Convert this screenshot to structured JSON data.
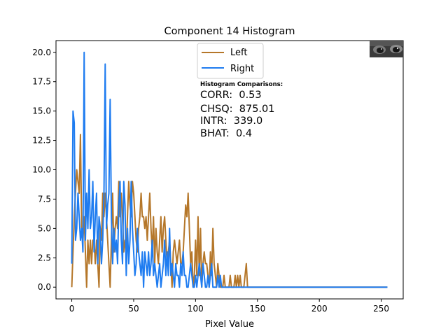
{
  "chart_data": {
    "type": "line",
    "title": "Component 14 Histogram",
    "xlabel": "Pixel Value",
    "ylabel": "",
    "xlim": [
      -12.75,
      267.75
    ],
    "ylim": [
      -1.0,
      21.0
    ],
    "xticks": [
      "0",
      "50",
      "100",
      "150",
      "200",
      "250"
    ],
    "yticks": [
      "0.0",
      "2.5",
      "5.0",
      "7.5",
      "10.0",
      "12.5",
      "15.0",
      "17.5",
      "20.0"
    ],
    "grid": false,
    "legend_position": "top-center",
    "series": [
      {
        "name": "Left",
        "color": "#b5772a",
        "points": [
          [
            0,
            0
          ],
          [
            2,
            6
          ],
          [
            4,
            10
          ],
          [
            5,
            9
          ],
          [
            6,
            8
          ],
          [
            7,
            13
          ],
          [
            8,
            5
          ],
          [
            9,
            4
          ],
          [
            10,
            6
          ],
          [
            11,
            3
          ],
          [
            12,
            0
          ],
          [
            13,
            4
          ],
          [
            14,
            2
          ],
          [
            15,
            4
          ],
          [
            16,
            2
          ],
          [
            17,
            4
          ],
          [
            18,
            4
          ],
          [
            19,
            2
          ],
          [
            20,
            4
          ],
          [
            21,
            2
          ],
          [
            22,
            0
          ],
          [
            23,
            5
          ],
          [
            24,
            4
          ],
          [
            25,
            8
          ],
          [
            26,
            6
          ],
          [
            27,
            8
          ],
          [
            28,
            6
          ],
          [
            29,
            4
          ],
          [
            30,
            2
          ],
          [
            31,
            0
          ],
          [
            32,
            4
          ],
          [
            33,
            8
          ],
          [
            34,
            3
          ],
          [
            35,
            5
          ],
          [
            36,
            6
          ],
          [
            37,
            5
          ],
          [
            38,
            9
          ],
          [
            39,
            6
          ],
          [
            40,
            8
          ],
          [
            41,
            6
          ],
          [
            42,
            3
          ],
          [
            43,
            4
          ],
          [
            44,
            3
          ],
          [
            45,
            6
          ],
          [
            46,
            9
          ],
          [
            47,
            7
          ],
          [
            48,
            6
          ],
          [
            49,
            9
          ],
          [
            50,
            8
          ],
          [
            51,
            6
          ],
          [
            52,
            4
          ],
          [
            53,
            3
          ],
          [
            54,
            5
          ],
          [
            55,
            6
          ],
          [
            56,
            8
          ],
          [
            57,
            6
          ],
          [
            58,
            6
          ],
          [
            59,
            5
          ],
          [
            60,
            6
          ],
          [
            61,
            4
          ],
          [
            62,
            6
          ],
          [
            63,
            8
          ],
          [
            64,
            5
          ],
          [
            65,
            3
          ],
          [
            66,
            6
          ],
          [
            67,
            2
          ],
          [
            68,
            5
          ],
          [
            69,
            3
          ],
          [
            70,
            2
          ],
          [
            71,
            4
          ],
          [
            72,
            6
          ],
          [
            73,
            3
          ],
          [
            74,
            5
          ],
          [
            75,
            6
          ],
          [
            76,
            4
          ],
          [
            77,
            2
          ],
          [
            78,
            3
          ],
          [
            79,
            4
          ],
          [
            80,
            2
          ],
          [
            81,
            0
          ],
          [
            82,
            3
          ],
          [
            83,
            4
          ],
          [
            84,
            3
          ],
          [
            85,
            2
          ],
          [
            86,
            3
          ],
          [
            87,
            4
          ],
          [
            88,
            2
          ],
          [
            89,
            2
          ],
          [
            90,
            3
          ],
          [
            91,
            5
          ],
          [
            92,
            7
          ],
          [
            93,
            6
          ],
          [
            94,
            8
          ],
          [
            95,
            5
          ],
          [
            96,
            2
          ],
          [
            97,
            3
          ],
          [
            98,
            0
          ],
          [
            99,
            1
          ],
          [
            100,
            4
          ],
          [
            101,
            1
          ],
          [
            102,
            6
          ],
          [
            103,
            1
          ],
          [
            104,
            5
          ],
          [
            105,
            0
          ],
          [
            106,
            2
          ],
          [
            107,
            3
          ],
          [
            108,
            2
          ],
          [
            109,
            2
          ],
          [
            110,
            1
          ],
          [
            111,
            0
          ],
          [
            112,
            3
          ],
          [
            113,
            1
          ],
          [
            114,
            5
          ],
          [
            115,
            2
          ],
          [
            116,
            1
          ],
          [
            117,
            0
          ],
          [
            118,
            2
          ],
          [
            119,
            1
          ],
          [
            120,
            0
          ],
          [
            121,
            0
          ],
          [
            122,
            0
          ],
          [
            123,
            1
          ],
          [
            124,
            0
          ],
          [
            125,
            0
          ],
          [
            126,
            0
          ],
          [
            127,
            0
          ],
          [
            128,
            1
          ],
          [
            129,
            0
          ],
          [
            130,
            0
          ],
          [
            131,
            0
          ],
          [
            132,
            1
          ],
          [
            133,
            0
          ],
          [
            134,
            1
          ],
          [
            135,
            0
          ],
          [
            136,
            1
          ],
          [
            137,
            0
          ],
          [
            138,
            0
          ],
          [
            139,
            0
          ],
          [
            140,
            1
          ],
          [
            141,
            2
          ],
          [
            142,
            0
          ],
          [
            143,
            0
          ],
          [
            150,
            0
          ],
          [
            200,
            0
          ],
          [
            255,
            0
          ]
        ]
      },
      {
        "name": "Right",
        "color": "#1f7cf0",
        "points": [
          [
            0,
            2
          ],
          [
            1,
            15
          ],
          [
            2,
            14
          ],
          [
            3,
            4
          ],
          [
            4,
            5
          ],
          [
            5,
            8
          ],
          [
            6,
            6
          ],
          [
            7,
            4
          ],
          [
            8,
            5
          ],
          [
            9,
            3
          ],
          [
            10,
            20
          ],
          [
            11,
            4
          ],
          [
            12,
            8
          ],
          [
            13,
            5
          ],
          [
            14,
            10
          ],
          [
            15,
            5
          ],
          [
            16,
            6
          ],
          [
            17,
            9
          ],
          [
            18,
            3
          ],
          [
            19,
            6
          ],
          [
            20,
            8
          ],
          [
            21,
            2
          ],
          [
            22,
            6
          ],
          [
            23,
            5
          ],
          [
            24,
            2
          ],
          [
            25,
            4
          ],
          [
            26,
            8
          ],
          [
            27,
            19
          ],
          [
            28,
            5
          ],
          [
            29,
            7
          ],
          [
            30,
            8
          ],
          [
            31,
            16
          ],
          [
            32,
            6
          ],
          [
            33,
            2
          ],
          [
            34,
            5
          ],
          [
            35,
            3
          ],
          [
            36,
            4
          ],
          [
            37,
            2
          ],
          [
            38,
            7
          ],
          [
            39,
            9
          ],
          [
            40,
            4
          ],
          [
            41,
            2
          ],
          [
            42,
            9
          ],
          [
            43,
            7
          ],
          [
            44,
            1
          ],
          [
            45,
            5
          ],
          [
            46,
            2
          ],
          [
            47,
            4
          ],
          [
            48,
            9
          ],
          [
            49,
            5
          ],
          [
            50,
            3
          ],
          [
            51,
            1
          ],
          [
            52,
            2
          ],
          [
            53,
            5
          ],
          [
            54,
            3
          ],
          [
            55,
            2
          ],
          [
            56,
            1
          ],
          [
            57,
            3
          ],
          [
            58,
            0
          ],
          [
            59,
            3
          ],
          [
            60,
            2
          ],
          [
            61,
            1
          ],
          [
            62,
            3
          ],
          [
            63,
            1
          ],
          [
            64,
            2
          ],
          [
            65,
            4
          ],
          [
            66,
            1
          ],
          [
            67,
            2
          ],
          [
            68,
            1
          ],
          [
            69,
            0
          ],
          [
            70,
            1
          ],
          [
            71,
            2
          ],
          [
            72,
            0
          ],
          [
            73,
            1
          ],
          [
            74,
            2
          ],
          [
            75,
            4
          ],
          [
            76,
            1
          ],
          [
            77,
            3
          ],
          [
            78,
            1
          ],
          [
            79,
            5
          ],
          [
            80,
            1
          ],
          [
            81,
            2
          ],
          [
            82,
            1
          ],
          [
            83,
            0
          ],
          [
            84,
            2
          ],
          [
            85,
            1
          ],
          [
            86,
            1
          ],
          [
            87,
            0
          ],
          [
            88,
            2
          ],
          [
            89,
            1
          ],
          [
            90,
            3
          ],
          [
            91,
            1
          ],
          [
            92,
            1
          ],
          [
            93,
            0
          ],
          [
            94,
            0
          ],
          [
            95,
            1
          ],
          [
            96,
            2
          ],
          [
            97,
            1
          ],
          [
            98,
            0
          ],
          [
            99,
            0
          ],
          [
            100,
            1
          ],
          [
            101,
            0
          ],
          [
            102,
            1
          ],
          [
            103,
            2
          ],
          [
            104,
            1
          ],
          [
            105,
            0
          ],
          [
            106,
            2
          ],
          [
            107,
            1
          ],
          [
            108,
            0
          ],
          [
            109,
            0
          ],
          [
            110,
            1
          ],
          [
            111,
            0
          ],
          [
            112,
            1
          ],
          [
            113,
            2
          ],
          [
            114,
            0
          ],
          [
            115,
            0
          ],
          [
            116,
            0
          ],
          [
            117,
            0
          ],
          [
            118,
            1
          ],
          [
            119,
            0
          ],
          [
            120,
            1
          ],
          [
            121,
            0
          ],
          [
            122,
            0
          ],
          [
            123,
            0
          ],
          [
            124,
            0
          ],
          [
            125,
            0
          ],
          [
            140,
            0
          ],
          [
            200,
            0
          ],
          [
            255,
            0
          ]
        ]
      }
    ]
  },
  "comparisons": {
    "heading": "Histogram Comparisons:",
    "lines": [
      "CORR:  0.53",
      "CHSQ:  875.01",
      "INTR:  339.0",
      "BHAT:  0.4"
    ]
  },
  "thumbnail": {
    "description": "grayscale eye image",
    "colors": {
      "dark": "#1a1a1a",
      "mid": "#6b6b6b",
      "light": "#b9b9b9"
    }
  }
}
